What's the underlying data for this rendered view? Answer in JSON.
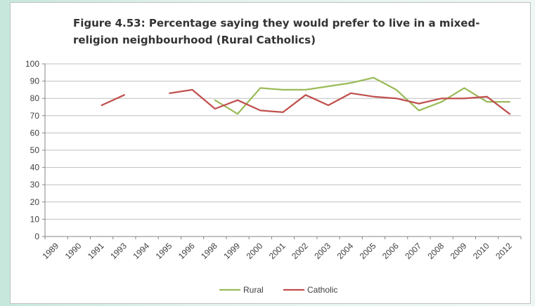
{
  "chart_data": {
    "type": "line",
    "title_lines": [
      "Figure 4.53: Percentage saying they would prefer to live in a mixed-",
      "religion neighbourhood  (Rural Catholics)"
    ],
    "xlabel": "",
    "ylabel": "",
    "categories": [
      "1989",
      "1990",
      "1991",
      "1993",
      "1994",
      "1995",
      "1996",
      "1998",
      "1999",
      "2000",
      "2001",
      "2002",
      "2003",
      "2004",
      "2005",
      "2006",
      "2007",
      "2008",
      "2009",
      "2010",
      "2012"
    ],
    "ylim": [
      0,
      100
    ],
    "yticks": [
      0,
      10,
      20,
      30,
      40,
      50,
      60,
      70,
      80,
      90,
      100
    ],
    "grid": true,
    "legend_position": "bottom",
    "series": [
      {
        "name": "Rural",
        "color": "#9bbb59",
        "values": [
          null,
          null,
          null,
          null,
          null,
          null,
          null,
          79,
          71,
          86,
          85,
          85,
          87,
          89,
          92,
          85,
          73,
          78,
          86,
          78,
          78
        ]
      },
      {
        "name": "Catholic",
        "color": "#c0504d",
        "values": [
          null,
          null,
          76,
          82,
          null,
          83,
          85,
          74,
          79,
          73,
          72,
          82,
          76,
          83,
          81,
          80,
          77,
          80,
          80,
          81,
          71
        ]
      }
    ]
  }
}
